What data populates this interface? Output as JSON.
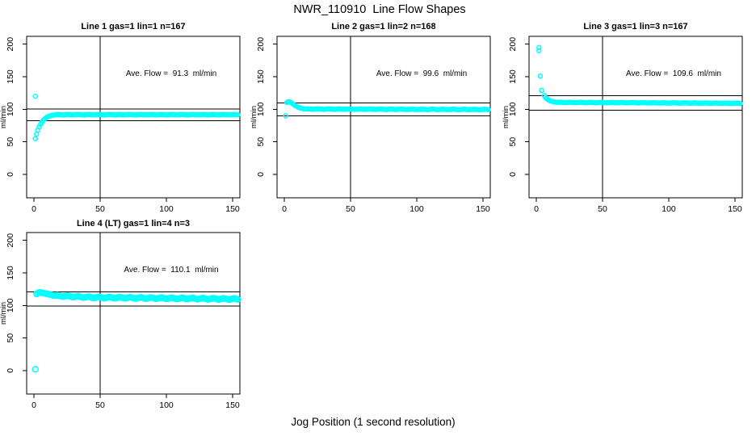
{
  "page": {
    "title": "NWR_110910  Line Flow Shapes",
    "xlabel": "Jog Position (1 second resolution)"
  },
  "style": {
    "point_color": "#00ffff",
    "axis_color": "#000000",
    "background": "#ffffff",
    "marker": "open-circle"
  },
  "axes": {
    "xlim": [
      -5.5,
      155.5
    ],
    "ylim": [
      -36,
      212
    ],
    "x_ticks": [
      0,
      50,
      100,
      150
    ],
    "y_ticks": [
      0,
      50,
      100,
      150,
      200
    ],
    "ylabel": "ml/min"
  },
  "chart_data": [
    {
      "type": "scatter",
      "panel": 1,
      "title": "Line 1 gas=1 lin=1 n=167",
      "gas": 1,
      "lin": 1,
      "n": 167,
      "ave_flow": 91.3,
      "ave_flow_label": "Ave. Flow =  91.3  ml/min",
      "ref_lines": [
        100.4,
        82.2
      ],
      "vline_x": 50,
      "marker_r": 2.5,
      "band_wiggle": 0.3,
      "head_points": [
        [
          1,
          120
        ],
        [
          1,
          55
        ],
        [
          2,
          62
        ],
        [
          3,
          68
        ],
        [
          4,
          73
        ],
        [
          5,
          77
        ],
        [
          6,
          80
        ],
        [
          7,
          83
        ],
        [
          8,
          85
        ],
        [
          9,
          86.5
        ],
        [
          10,
          88
        ],
        [
          11,
          89
        ],
        [
          12,
          89.7
        ],
        [
          13,
          90.3
        ],
        [
          14,
          90.7
        ],
        [
          15,
          91
        ]
      ],
      "segments": [
        {
          "from": 16,
          "to": 154,
          "start": 91.6,
          "end": 91.6
        }
      ]
    },
    {
      "type": "scatter",
      "panel": 2,
      "title": "Line 2 gas=1 lin=2 n=168",
      "gas": 1,
      "lin": 2,
      "n": 168,
      "ave_flow": 99.6,
      "ave_flow_label": "Ave. Flow =  99.6  ml/min",
      "ref_lines": [
        109.6,
        89.6
      ],
      "vline_x": 50,
      "marker_r": 2.5,
      "band_wiggle": 0.3,
      "head_points": [
        [
          1,
          90
        ],
        [
          2,
          110.5
        ],
        [
          3,
          111.5
        ],
        [
          4,
          111.3
        ],
        [
          5,
          110.5
        ],
        [
          6,
          109
        ],
        [
          7,
          107.5
        ],
        [
          8,
          106
        ],
        [
          9,
          104.8
        ],
        [
          10,
          103.6
        ],
        [
          11,
          102.8
        ],
        [
          12,
          102
        ],
        [
          13,
          101.5
        ],
        [
          14,
          101
        ],
        [
          15,
          100.7
        ]
      ],
      "segments": [
        {
          "from": 16,
          "to": 154,
          "start": 100.3,
          "end": 99.6
        }
      ]
    },
    {
      "type": "scatter",
      "panel": 3,
      "title": "Line 3 gas=1 lin=3 n=167",
      "gas": 1,
      "lin": 3,
      "n": 167,
      "ave_flow": 109.6,
      "ave_flow_label": "Ave. Flow =  109.6  ml/min",
      "ref_lines": [
        120.6,
        98.6
      ],
      "vline_x": 50,
      "marker_r": 2.5,
      "band_wiggle": 0.3,
      "head_points": [
        [
          2,
          195
        ],
        [
          2,
          190
        ],
        [
          3,
          151
        ],
        [
          4,
          129
        ],
        [
          6,
          121
        ],
        [
          7,
          118
        ],
        [
          8,
          116
        ],
        [
          9,
          114.5
        ],
        [
          10,
          113.5
        ],
        [
          11,
          112.6
        ],
        [
          12,
          112
        ],
        [
          13,
          111.5
        ],
        [
          14,
          111.1
        ],
        [
          15,
          110.8
        ]
      ],
      "segments": [
        {
          "from": 16,
          "to": 154,
          "start": 110.6,
          "end": 109.2
        }
      ]
    },
    {
      "type": "scatter",
      "panel": 4,
      "title": "Line 4 (LT) gas=1 lin=4 n=3",
      "gas": 1,
      "lin": 4,
      "n": 3,
      "ave_flow": 110.1,
      "ave_flow_label": "Ave. Flow =  110.1  ml/min",
      "ref_lines": [
        121.1,
        99.1
      ],
      "vline_x": 50,
      "marker_r": 3.4,
      "band_wiggle": 0.9,
      "head_points": [
        [
          1,
          2
        ],
        [
          2,
          117.5
        ],
        [
          3,
          119
        ],
        [
          4,
          120
        ],
        [
          5,
          120
        ],
        [
          6,
          119.5
        ],
        [
          7,
          119
        ],
        [
          8,
          118.6
        ],
        [
          9,
          118.2
        ],
        [
          10,
          117.8
        ],
        [
          11,
          117.3
        ],
        [
          12,
          116.8
        ],
        [
          13,
          116.3
        ],
        [
          14,
          115.8
        ],
        [
          15,
          115.3
        ]
      ],
      "segments": [
        {
          "from": 16,
          "to": 45,
          "start": 115,
          "end": 112.3
        },
        {
          "from": 46,
          "to": 154,
          "start": 112.3,
          "end": 109.8
        }
      ]
    }
  ]
}
